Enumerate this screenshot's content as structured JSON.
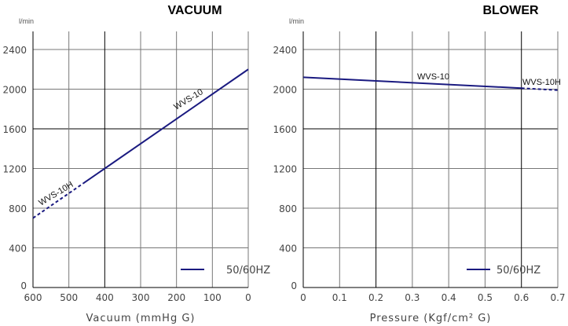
{
  "chart_data": [
    {
      "type": "line",
      "title": "VACUUM",
      "ylabel": "l/min",
      "xlabel": "Vacuum (mmHg G)",
      "x_ticks": [
        600,
        500,
        400,
        300,
        200,
        100,
        0
      ],
      "y_ticks": [
        0,
        400,
        800,
        1200,
        1600,
        2000,
        2400
      ],
      "xlim": [
        600,
        0
      ],
      "ylim": [
        0,
        2580
      ],
      "series": [
        {
          "name": "WVS-10H",
          "style": "dashed",
          "x": [
            600,
            460
          ],
          "y": [
            700,
            1050
          ]
        },
        {
          "name": "WVS-10",
          "style": "solid",
          "x": [
            460,
            0
          ],
          "y": [
            1050,
            2200
          ]
        }
      ],
      "legend": {
        "label": "50/60HZ",
        "placement": "bottom-right"
      },
      "color": "#1a1a80"
    },
    {
      "type": "line",
      "title": "BLOWER",
      "ylabel": "l/min",
      "xlabel": "Pressure (Kgf/cm² G)",
      "x_ticks": [
        "0",
        "0.1",
        "0.2",
        "0.3",
        "0.4",
        "0.5",
        "0.6",
        "0.7"
      ],
      "y_ticks": [
        0,
        400,
        800,
        1200,
        1600,
        2000,
        2400
      ],
      "xlim": [
        0,
        0.7
      ],
      "ylim": [
        0,
        2580
      ],
      "series": [
        {
          "name": "WVS-10",
          "style": "solid",
          "x": [
            0,
            0.6
          ],
          "y": [
            2120,
            2010
          ]
        },
        {
          "name": "WVS-10H",
          "style": "dashed",
          "x": [
            0.6,
            0.7
          ],
          "y": [
            2010,
            1990
          ]
        }
      ],
      "legend": {
        "label": "50/60HZ",
        "placement": "bottom-right"
      },
      "color": "#1a1a80"
    }
  ]
}
